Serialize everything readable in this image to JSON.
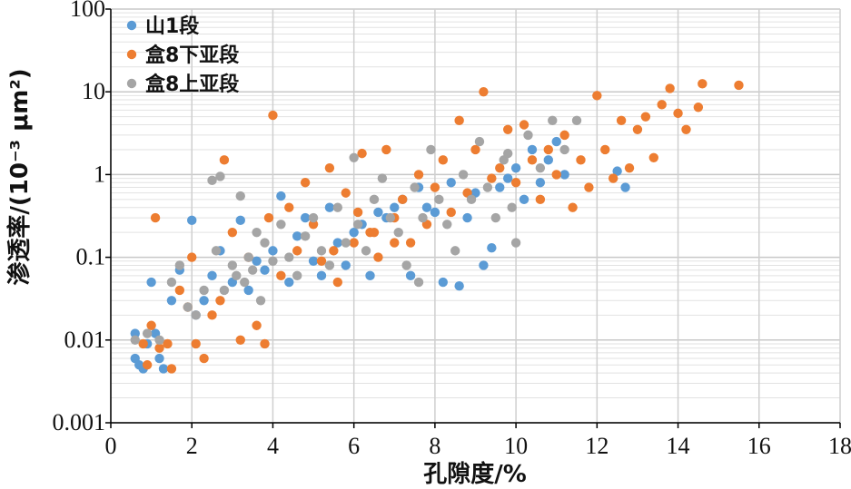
{
  "chart_data": {
    "type": "scatter",
    "xlabel": "孔隙度/%",
    "ylabel": "渗透率/(10⁻³ μm²)",
    "xlim": [
      0,
      18
    ],
    "ylim": [
      0.001,
      100
    ],
    "yscale": "log",
    "x_ticks": [
      "0",
      "2",
      "4",
      "6",
      "8",
      "10",
      "12",
      "14",
      "16",
      "18"
    ],
    "y_ticks": [
      "0.001",
      "0.01",
      "0.1",
      "1",
      "10",
      "100"
    ],
    "grid": true,
    "legend_position": "top-left",
    "series": [
      {
        "name": "山1段",
        "color": "#5b9bd5",
        "points": [
          [
            0.6,
            0.006
          ],
          [
            0.6,
            0.012
          ],
          [
            0.7,
            0.005
          ],
          [
            0.8,
            0.0045
          ],
          [
            0.9,
            0.009
          ],
          [
            1.0,
            0.05
          ],
          [
            1.1,
            0.012
          ],
          [
            1.2,
            0.006
          ],
          [
            1.3,
            0.0045
          ],
          [
            1.5,
            0.03
          ],
          [
            1.7,
            0.07
          ],
          [
            2.0,
            0.28
          ],
          [
            2.1,
            0.02
          ],
          [
            2.3,
            0.03
          ],
          [
            2.5,
            0.06
          ],
          [
            2.7,
            0.12
          ],
          [
            3.0,
            0.05
          ],
          [
            3.2,
            0.28
          ],
          [
            3.4,
            0.04
          ],
          [
            3.6,
            0.09
          ],
          [
            3.8,
            0.07
          ],
          [
            4.0,
            0.12
          ],
          [
            4.2,
            0.55
          ],
          [
            4.4,
            0.05
          ],
          [
            4.6,
            0.18
          ],
          [
            4.8,
            0.3
          ],
          [
            5.0,
            0.09
          ],
          [
            5.2,
            0.06
          ],
          [
            5.4,
            0.4
          ],
          [
            5.6,
            0.15
          ],
          [
            5.8,
            0.08
          ],
          [
            6.0,
            0.2
          ],
          [
            6.2,
            0.25
          ],
          [
            6.4,
            0.06
          ],
          [
            6.6,
            0.35
          ],
          [
            6.8,
            0.3
          ],
          [
            7.0,
            0.4
          ],
          [
            7.2,
            0.5
          ],
          [
            7.4,
            0.06
          ],
          [
            7.6,
            0.7
          ],
          [
            7.8,
            0.4
          ],
          [
            8.0,
            0.35
          ],
          [
            8.2,
            0.05
          ],
          [
            8.4,
            0.8
          ],
          [
            8.6,
            0.045
          ],
          [
            8.8,
            0.3
          ],
          [
            9.0,
            0.6
          ],
          [
            9.2,
            0.08
          ],
          [
            9.4,
            0.13
          ],
          [
            9.6,
            0.7
          ],
          [
            9.8,
            0.9
          ],
          [
            10.0,
            1.2
          ],
          [
            10.2,
            0.5
          ],
          [
            10.4,
            2.0
          ],
          [
            10.6,
            0.8
          ],
          [
            10.8,
            1.5
          ],
          [
            11.0,
            2.5
          ],
          [
            11.2,
            1.0
          ],
          [
            12.5,
            1.1
          ],
          [
            12.7,
            0.7
          ]
        ]
      },
      {
        "name": "盒8下亚段",
        "color": "#ed7d31",
        "points": [
          [
            0.8,
            0.009
          ],
          [
            0.9,
            0.005
          ],
          [
            1.0,
            0.015
          ],
          [
            1.1,
            0.3
          ],
          [
            1.2,
            0.008
          ],
          [
            1.4,
            0.009
          ],
          [
            1.5,
            0.0045
          ],
          [
            1.7,
            0.04
          ],
          [
            1.9,
            0.025
          ],
          [
            2.0,
            0.1
          ],
          [
            2.1,
            0.009
          ],
          [
            2.3,
            0.006
          ],
          [
            2.5,
            0.02
          ],
          [
            2.7,
            0.03
          ],
          [
            2.8,
            1.5
          ],
          [
            3.0,
            0.2
          ],
          [
            3.2,
            0.01
          ],
          [
            3.4,
            0.1
          ],
          [
            3.6,
            0.015
          ],
          [
            3.8,
            0.009
          ],
          [
            3.9,
            0.3
          ],
          [
            4.0,
            5.2
          ],
          [
            4.2,
            0.06
          ],
          [
            4.4,
            0.4
          ],
          [
            4.6,
            0.12
          ],
          [
            4.8,
            0.8
          ],
          [
            5.0,
            0.25
          ],
          [
            5.2,
            0.09
          ],
          [
            5.4,
            1.2
          ],
          [
            5.6,
            0.05
          ],
          [
            5.8,
            0.6
          ],
          [
            6.0,
            0.15
          ],
          [
            6.1,
            0.35
          ],
          [
            6.2,
            1.8
          ],
          [
            6.4,
            0.2
          ],
          [
            6.6,
            0.1
          ],
          [
            6.8,
            2.0
          ],
          [
            7.0,
            0.3
          ],
          [
            7.2,
            0.5
          ],
          [
            7.4,
            0.15
          ],
          [
            7.6,
            1.0
          ],
          [
            7.8,
            0.25
          ],
          [
            8.0,
            0.7
          ],
          [
            8.2,
            1.5
          ],
          [
            8.4,
            0.35
          ],
          [
            8.6,
            4.5
          ],
          [
            8.8,
            0.6
          ],
          [
            9.0,
            2.0
          ],
          [
            9.2,
            10.0
          ],
          [
            9.4,
            0.9
          ],
          [
            9.6,
            1.2
          ],
          [
            9.8,
            3.5
          ],
          [
            10.0,
            0.8
          ],
          [
            10.2,
            4.0
          ],
          [
            10.4,
            1.5
          ],
          [
            10.6,
            0.5
          ],
          [
            10.8,
            2.0
          ],
          [
            11.0,
            1.0
          ],
          [
            11.2,
            3.0
          ],
          [
            11.4,
            0.4
          ],
          [
            11.6,
            1.5
          ],
          [
            11.8,
            0.7
          ],
          [
            12.0,
            9.0
          ],
          [
            12.2,
            2.0
          ],
          [
            12.4,
            0.9
          ],
          [
            12.6,
            4.5
          ],
          [
            12.8,
            1.2
          ],
          [
            13.0,
            3.5
          ],
          [
            13.2,
            5.0
          ],
          [
            13.4,
            1.6
          ],
          [
            13.6,
            7.0
          ],
          [
            13.8,
            11.0
          ],
          [
            14.0,
            5.5
          ],
          [
            14.2,
            3.5
          ],
          [
            14.5,
            6.5
          ],
          [
            14.6,
            12.5
          ],
          [
            15.5,
            12.0
          ],
          [
            7.0,
            0.15
          ],
          [
            6.5,
            0.2
          ],
          [
            5.5,
            0.12
          ]
        ]
      },
      {
        "name": "盒8上亚段",
        "color": "#a5a5a5",
        "points": [
          [
            0.6,
            0.01
          ],
          [
            0.9,
            0.012
          ],
          [
            1.2,
            0.01
          ],
          [
            1.5,
            0.05
          ],
          [
            1.7,
            0.08
          ],
          [
            1.9,
            0.025
          ],
          [
            2.1,
            0.02
          ],
          [
            2.3,
            0.04
          ],
          [
            2.5,
            0.85
          ],
          [
            2.6,
            0.12
          ],
          [
            2.7,
            0.95
          ],
          [
            2.8,
            0.04
          ],
          [
            3.0,
            0.08
          ],
          [
            3.1,
            0.06
          ],
          [
            3.2,
            0.55
          ],
          [
            3.3,
            0.05
          ],
          [
            3.4,
            0.1
          ],
          [
            3.5,
            0.07
          ],
          [
            3.6,
            0.2
          ],
          [
            3.7,
            0.03
          ],
          [
            3.8,
            0.15
          ],
          [
            4.0,
            0.09
          ],
          [
            4.2,
            0.25
          ],
          [
            4.4,
            0.1
          ],
          [
            4.6,
            0.06
          ],
          [
            4.8,
            0.18
          ],
          [
            5.0,
            0.3
          ],
          [
            5.2,
            0.12
          ],
          [
            5.4,
            0.08
          ],
          [
            5.6,
            0.4
          ],
          [
            5.8,
            0.15
          ],
          [
            6.0,
            1.6
          ],
          [
            6.1,
            0.25
          ],
          [
            6.3,
            0.12
          ],
          [
            6.5,
            0.5
          ],
          [
            6.7,
            0.9
          ],
          [
            6.9,
            0.3
          ],
          [
            7.1,
            0.2
          ],
          [
            7.3,
            0.08
          ],
          [
            7.5,
            0.7
          ],
          [
            7.7,
            0.3
          ],
          [
            7.9,
            2.0
          ],
          [
            8.1,
            0.5
          ],
          [
            8.3,
            0.25
          ],
          [
            8.5,
            0.12
          ],
          [
            8.7,
            1.0
          ],
          [
            8.9,
            0.5
          ],
          [
            9.1,
            2.5
          ],
          [
            9.3,
            0.7
          ],
          [
            9.5,
            0.3
          ],
          [
            9.7,
            1.5
          ],
          [
            9.9,
            0.4
          ],
          [
            10.0,
            0.15
          ],
          [
            10.3,
            3.0
          ],
          [
            10.6,
            1.2
          ],
          [
            10.9,
            4.5
          ],
          [
            11.2,
            2.0
          ],
          [
            11.5,
            4.5
          ],
          [
            9.8,
            1.8
          ],
          [
            7.6,
            0.05
          ]
        ]
      }
    ]
  }
}
